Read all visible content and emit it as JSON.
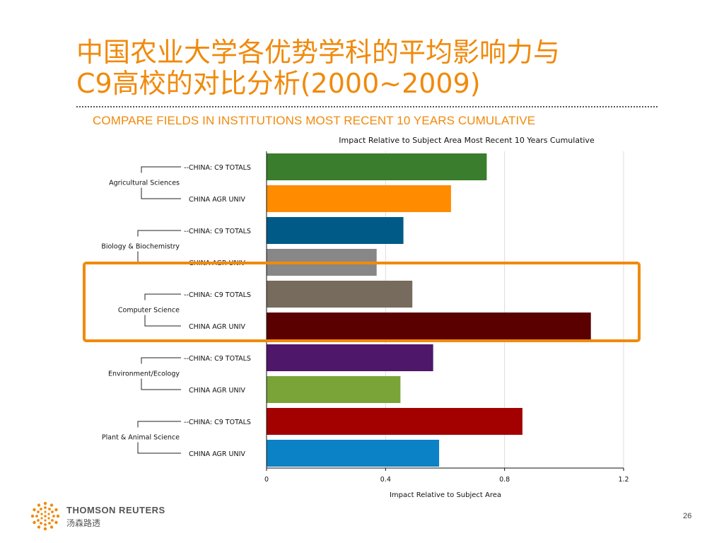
{
  "slide": {
    "title_line1": "中国农业大学各优势学科的平均影响力与",
    "title_line2": "C9高校的对比分析(2000~2009)",
    "subtitle": "COMPARE FIELDS IN INSTITUTIONS MOST RECENT 10 YEARS CUMULATIVE",
    "page_number": "26",
    "footer_brand": "THOMSON REUTERS",
    "footer_brand_cn": "汤森路透",
    "highlight_color": "#f08a0c"
  },
  "chart_data": {
    "type": "bar",
    "orientation": "horizontal",
    "title": "Impact Relative to Subject Area Most Recent 10 Years Cumulative",
    "xlabel": "Impact Relative to Subject Area",
    "xlim": [
      0,
      1.2
    ],
    "xticks": [
      "0",
      "0.4",
      "0.8",
      "1.2"
    ],
    "grid": true,
    "highlighted_group": "Computer Science",
    "groups": [
      {
        "name": "Agricultural Sciences",
        "bars": [
          {
            "label": "--CHINA: C9 TOTALS",
            "value": 0.74,
            "color": "#3a7d2c"
          },
          {
            "label": "CHINA AGR UNIV",
            "value": 0.62,
            "color": "#ff8c00"
          }
        ]
      },
      {
        "name": "Biology & Biochemistry",
        "bars": [
          {
            "label": "--CHINA: C9 TOTALS",
            "value": 0.46,
            "color": "#005a87"
          },
          {
            "label": "CHINA AGR UNIV",
            "value": 0.37,
            "color": "#878787"
          }
        ]
      },
      {
        "name": "Computer Science",
        "bars": [
          {
            "label": "--CHINA: C9 TOTALS",
            "value": 0.49,
            "color": "#776b5d"
          },
          {
            "label": "CHINA AGR UNIV",
            "value": 1.09,
            "color": "#5a0000"
          }
        ]
      },
      {
        "name": "Environment/Ecology",
        "bars": [
          {
            "label": "--CHINA: C9 TOTALS",
            "value": 0.56,
            "color": "#4e176a"
          },
          {
            "label": "CHINA AGR UNIV",
            "value": 0.45,
            "color": "#7aa338"
          }
        ]
      },
      {
        "name": "Plant & Animal Science",
        "bars": [
          {
            "label": "--CHINA: C9 TOTALS",
            "value": 0.86,
            "color": "#a30000"
          },
          {
            "label": "CHINA AGR UNIV",
            "value": 0.58,
            "color": "#0a82c5"
          }
        ]
      }
    ]
  }
}
